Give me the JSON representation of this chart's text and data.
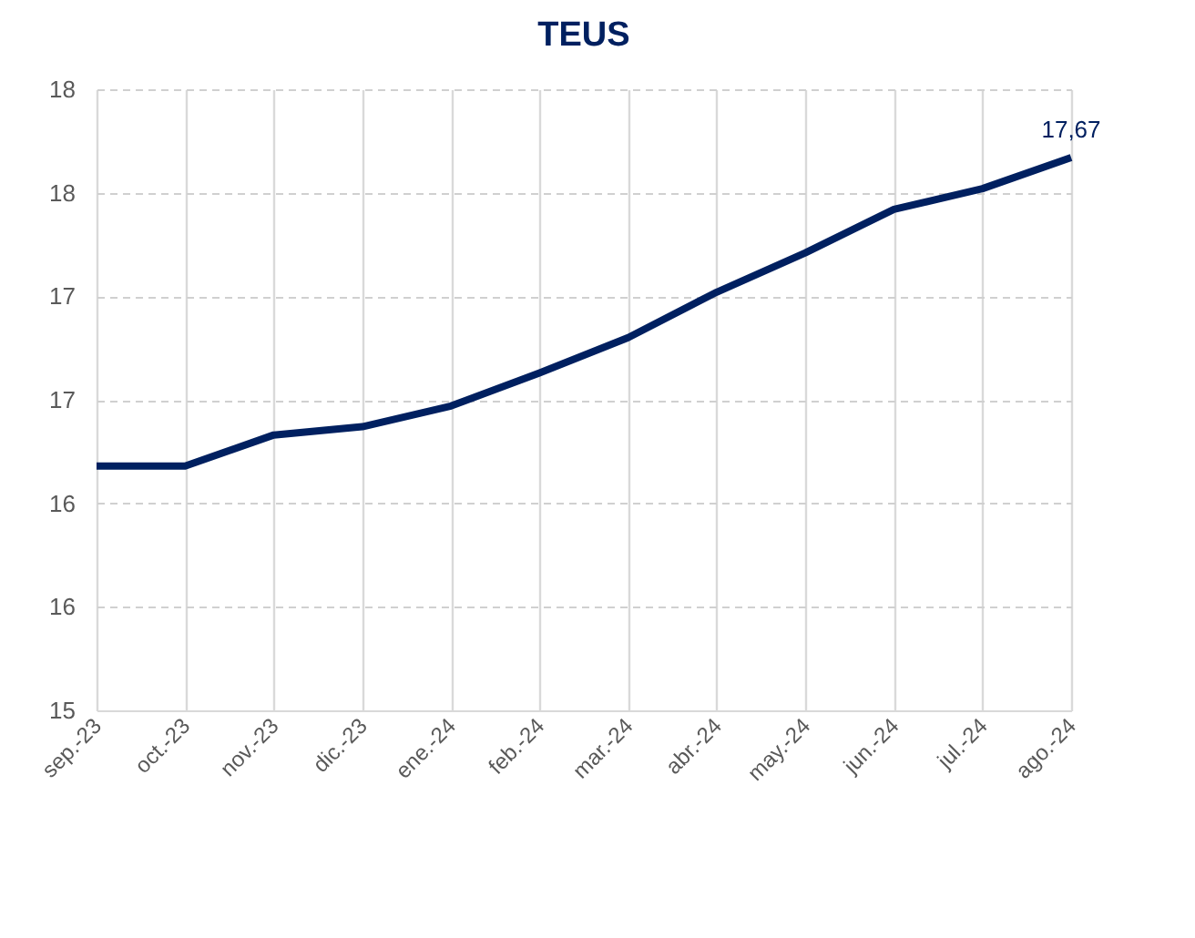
{
  "chart_data": {
    "type": "line",
    "title": "TEUS",
    "categories": [
      "sep.-23",
      "oct.-23",
      "nov.-23",
      "dic.-23",
      "ene.-24",
      "feb.-24",
      "mar.-24",
      "abr.-24",
      "may.-24",
      "jun.-24",
      "jul.-24",
      "ago.-24"
    ],
    "series": [
      {
        "color": "#002060",
        "values": [
          16.18,
          16.18,
          16.33,
          16.37,
          16.47,
          16.63,
          16.8,
          17.02,
          17.21,
          17.42,
          17.52,
          17.67
        ],
        "value_labels": [
          null,
          null,
          null,
          null,
          null,
          null,
          null,
          null,
          null,
          null,
          null,
          "17,67"
        ]
      }
    ],
    "ylim": [
      15,
      18
    ],
    "yticks": [
      15,
      {
        "value": 15.5,
        "label": "16"
      },
      16,
      {
        "value": 16.5,
        "label": "17"
      },
      17,
      {
        "value": 17.5,
        "label": "18"
      },
      18
    ],
    "grid": true,
    "marker": "none",
    "line_style": "solid",
    "legend": false
  }
}
